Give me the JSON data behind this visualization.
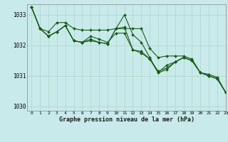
{
  "title": "Graphe pression niveau de la mer (hPa)",
  "bg_color": "#c8eaea",
  "grid_color": "#b0d4c8",
  "line_color": "#1a5c1a",
  "xlim": [
    -0.5,
    23
  ],
  "ylim": [
    1029.85,
    1033.35
  ],
  "yticks": [
    1030,
    1031,
    1032,
    1033
  ],
  "xticks": [
    0,
    1,
    2,
    3,
    4,
    5,
    6,
    7,
    8,
    9,
    10,
    11,
    12,
    13,
    14,
    15,
    16,
    17,
    18,
    19,
    20,
    21,
    22,
    23
  ],
  "series": [
    [
      1033.25,
      1032.55,
      1032.45,
      1032.75,
      1032.75,
      1032.55,
      1032.5,
      1032.5,
      1032.5,
      1032.5,
      1032.55,
      1032.55,
      1032.55,
      1032.55,
      1031.9,
      1031.6,
      1031.65,
      1031.65,
      1031.65,
      1031.55,
      1031.1,
      1031.05,
      1030.95,
      1030.45
    ],
    [
      1033.25,
      1032.55,
      1032.3,
      1032.45,
      1032.65,
      1032.15,
      1032.1,
      1032.15,
      1032.1,
      1032.05,
      1032.55,
      1033.0,
      1032.35,
      1032.1,
      1031.6,
      1031.1,
      1031.35,
      1031.45,
      1031.6,
      1031.5,
      1031.1,
      1031.0,
      1030.9,
      1030.45
    ],
    [
      1033.25,
      1032.55,
      1032.3,
      1032.45,
      1032.65,
      1032.15,
      1032.1,
      1032.2,
      1032.1,
      1032.05,
      1032.55,
      1032.6,
      1031.85,
      1031.8,
      1031.55,
      1031.1,
      1031.2,
      1031.45,
      1031.6,
      1031.5,
      1031.1,
      1031.0,
      1030.9,
      1030.45
    ],
    [
      1033.25,
      1032.55,
      1032.3,
      1032.45,
      1032.65,
      1032.15,
      1032.1,
      1032.3,
      1032.2,
      1032.1,
      1032.4,
      1032.4,
      1031.85,
      1031.75,
      1031.55,
      1031.15,
      1031.25,
      1031.45,
      1031.6,
      1031.5,
      1031.1,
      1031.0,
      1030.9,
      1030.45
    ]
  ]
}
